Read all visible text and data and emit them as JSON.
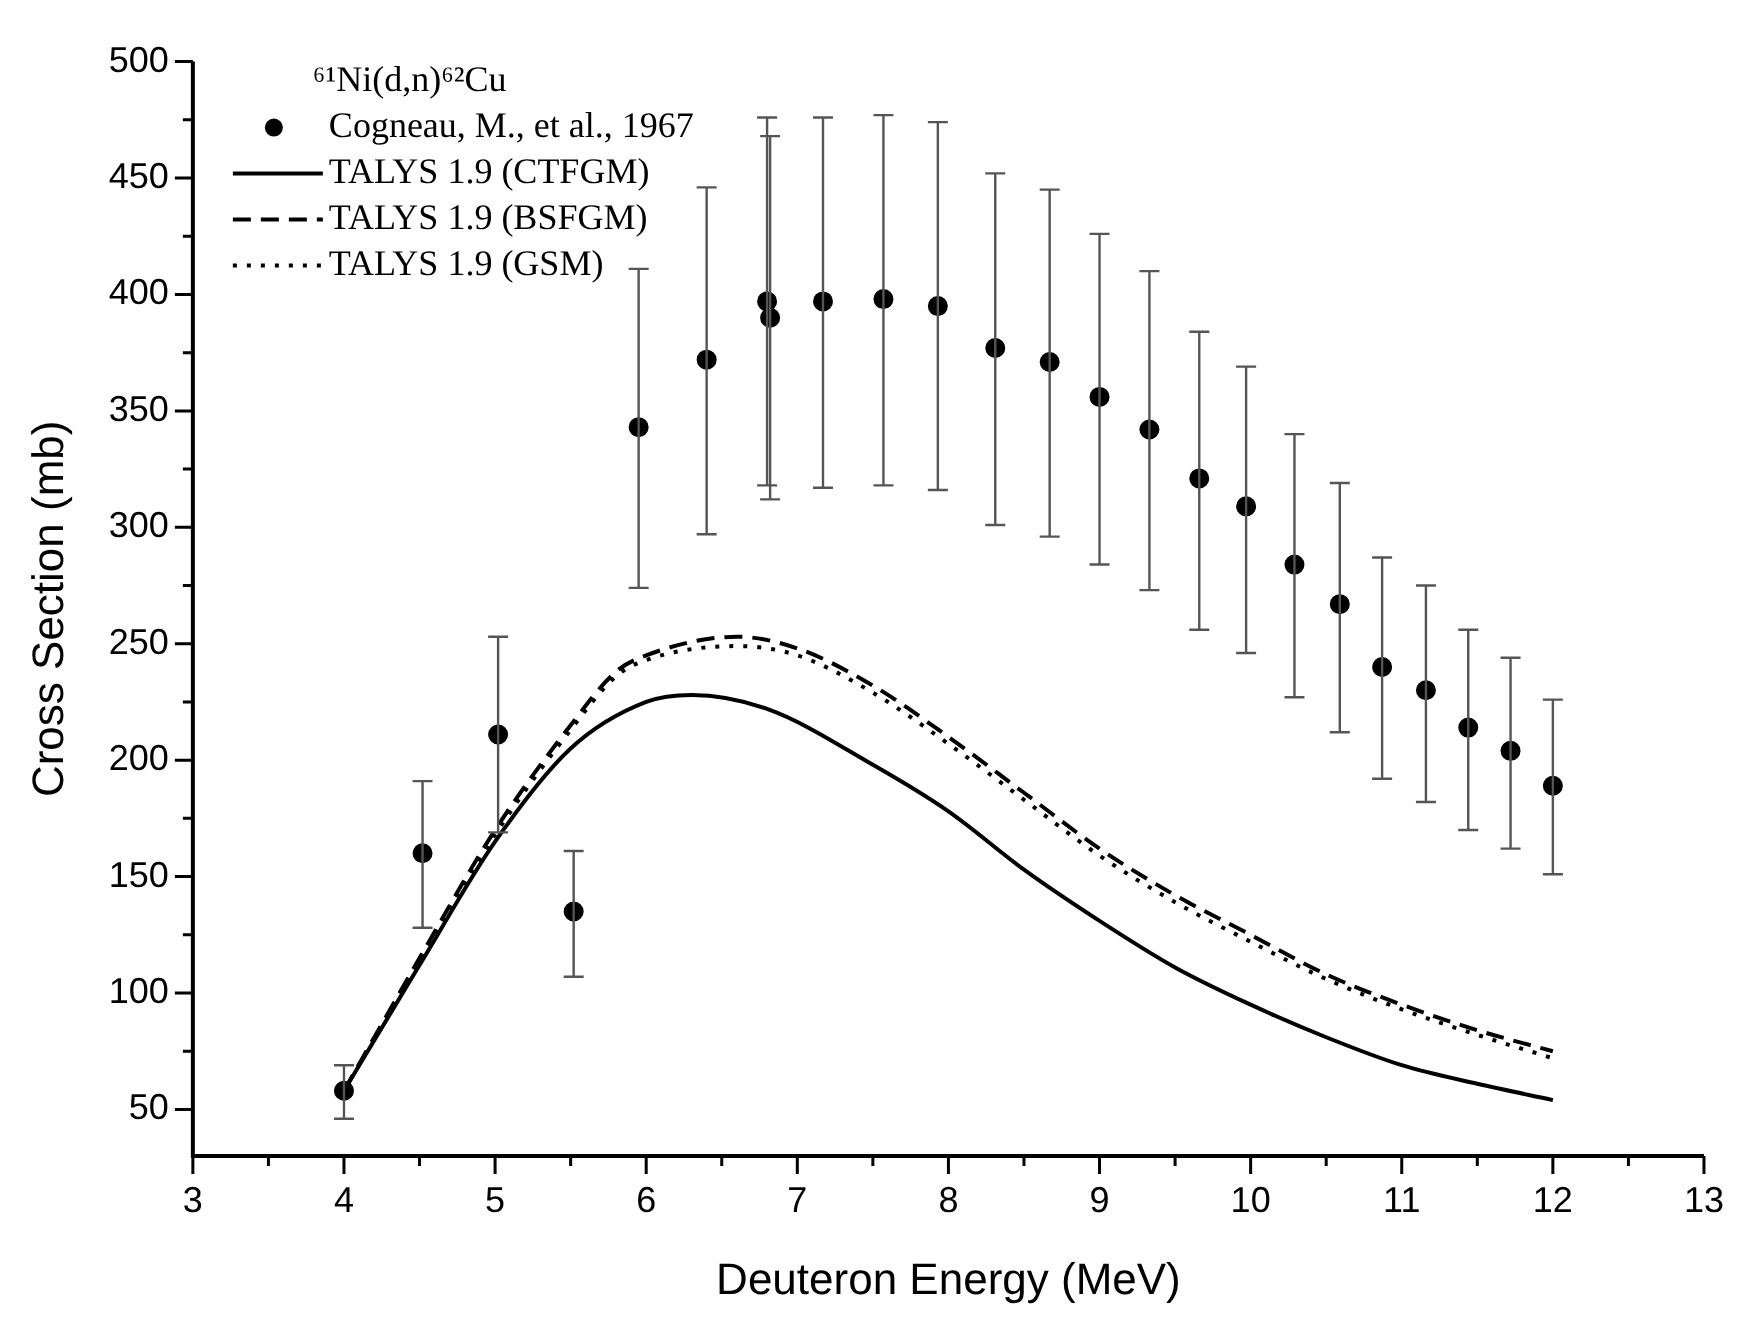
{
  "chart_data": {
    "type": "scatter",
    "xlabel": "Deuteron Energy (MeV)",
    "ylabel": "Cross Section (mb)",
    "legend_title": "⁶¹Ni(d,n)⁶²Cu",
    "legend": "top left",
    "grid": false,
    "xlim": [
      3,
      13
    ],
    "xticks": [
      3,
      4,
      5,
      6,
      7,
      8,
      9,
      10,
      11,
      12,
      13
    ],
    "ylim": [
      30,
      500
    ],
    "yticks": [
      50,
      100,
      150,
      200,
      250,
      300,
      350,
      400,
      450,
      500
    ],
    "series": [
      {
        "name": "Cogneau, M., et al., 1967",
        "type": "scatter",
        "marker": "circle",
        "color": "#000000",
        "x": [
          4.0,
          4.52,
          5.02,
          5.52,
          5.95,
          6.4,
          6.8,
          6.82,
          7.17,
          7.57,
          7.93,
          8.31,
          8.67,
          9.0,
          9.33,
          9.66,
          9.97,
          10.29,
          10.59,
          10.87,
          11.16,
          11.44,
          11.72,
          12.0
        ],
        "values": [
          58,
          160,
          211,
          135,
          343,
          372,
          397,
          390,
          397,
          398,
          395,
          377,
          371,
          356,
          342,
          321,
          309,
          284,
          267,
          240,
          230,
          214,
          204,
          189
        ],
        "errors": [
          [
            46,
            69
          ],
          [
            128,
            191
          ],
          [
            169,
            253
          ],
          [
            107,
            161
          ],
          [
            274,
            411
          ],
          [
            297,
            446
          ],
          [
            318,
            476
          ],
          [
            312,
            468
          ],
          [
            317,
            476
          ],
          [
            318,
            477
          ],
          [
            316,
            474
          ],
          [
            301,
            452
          ],
          [
            296,
            445
          ],
          [
            284,
            426
          ],
          [
            273,
            410
          ],
          [
            256,
            384
          ],
          [
            246,
            369
          ],
          [
            227,
            340
          ],
          [
            212,
            319
          ],
          [
            192,
            287
          ],
          [
            182,
            275
          ],
          [
            170,
            256
          ],
          [
            162,
            244
          ],
          [
            151,
            226
          ]
        ]
      },
      {
        "name": "TALYS 1.9 (CTFGM)",
        "type": "line",
        "line_style": "solid",
        "marker": "none",
        "color": "#000000",
        "x": [
          4,
          4.5,
          5,
          5.5,
          6,
          6.3,
          6.8,
          7.5,
          8,
          8.5,
          9,
          9.5,
          10,
          10.5,
          11,
          11.5,
          12
        ],
        "values": [
          58,
          112,
          165,
          205,
          225,
          228,
          222,
          198,
          178,
          153,
          131,
          111,
          95,
          81,
          69,
          61,
          54
        ]
      },
      {
        "name": "TALYS 1.9 (BSFGM)",
        "type": "line",
        "line_style": "dashed",
        "marker": "none",
        "color": "#000000",
        "x": [
          4,
          4.5,
          5,
          5.5,
          5.8,
          6,
          6.6,
          7,
          7.5,
          8,
          8.5,
          9,
          9.5,
          10,
          10.5,
          11,
          11.5,
          12
        ],
        "values": [
          58,
          115,
          170,
          215,
          238,
          245,
          253,
          248,
          232,
          210,
          186,
          162,
          142,
          125,
          108,
          95,
          84,
          75
        ]
      },
      {
        "name": "TALYS 1.9 (GSM)",
        "type": "line",
        "line_style": "dotted",
        "marker": "none",
        "color": "#000000",
        "x": [
          4,
          4.5,
          5,
          5.5,
          5.8,
          6,
          6.6,
          7,
          7.5,
          8,
          8.5,
          9,
          9.5,
          10,
          10.5,
          11,
          11.5,
          12
        ],
        "values": [
          58,
          114,
          168,
          213,
          236,
          243,
          249,
          245,
          229,
          207,
          183,
          159,
          139,
          122,
          106,
          93,
          82,
          72
        ]
      }
    ]
  }
}
